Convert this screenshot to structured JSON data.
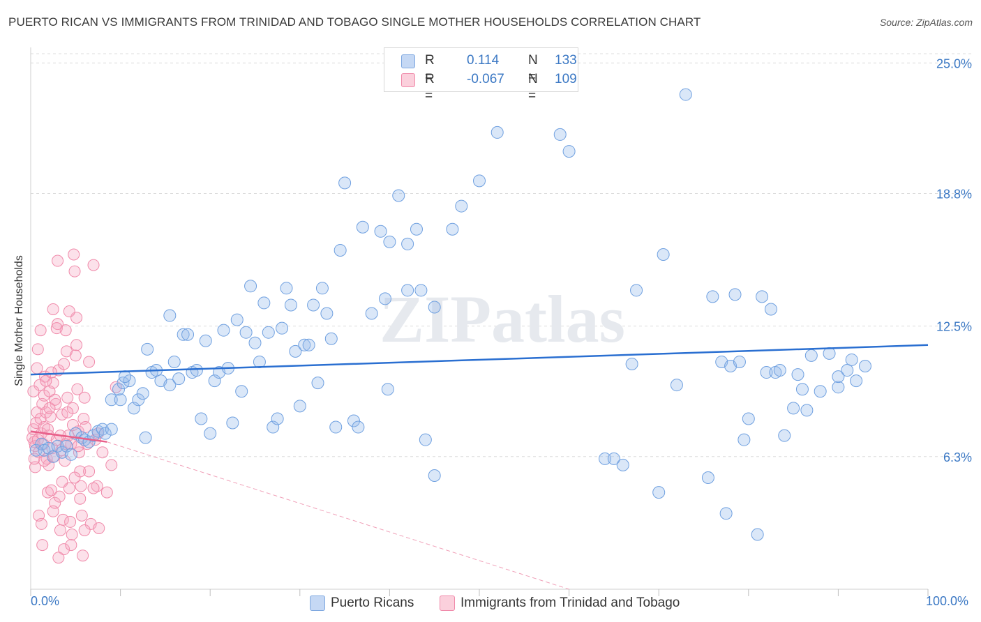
{
  "title": "PUERTO RICAN VS IMMIGRANTS FROM TRINIDAD AND TOBAGO SINGLE MOTHER HOUSEHOLDS CORRELATION CHART",
  "source": "Source: ZipAtlas.com",
  "watermark": "ZIPatlas",
  "legend": {
    "rows": [
      {
        "r_label": "R =",
        "r_value": "0.114",
        "n_label": "N =",
        "n_value": "133",
        "color": "#a9c6ee"
      },
      {
        "r_label": "R =",
        "r_value": "-0.067",
        "n_label": "N =",
        "n_value": "109",
        "color": "#f6b9cb"
      }
    ]
  },
  "bottom_legend": {
    "series1": "Puerto Ricans",
    "series2": "Immigrants from Trinidad and Tobago"
  },
  "chart_data": {
    "type": "scatter",
    "title": "PUERTO RICAN VS IMMIGRANTS FROM TRINIDAD AND TOBAGO SINGLE MOTHER HOUSEHOLDS CORRELATION CHART",
    "xlabel": "",
    "ylabel": "Single Mother Households",
    "xlim": [
      0,
      100
    ],
    "ylim": [
      0,
      26.5
    ],
    "x_tick_labels": [
      "0.0%",
      "100.0%"
    ],
    "y_ticks": [
      6.3,
      12.5,
      18.8,
      25.0
    ],
    "y_tick_labels": [
      "6.3%",
      "12.5%",
      "18.8%",
      "25.0%"
    ],
    "grid": true,
    "series": [
      {
        "name": "Puerto Ricans",
        "color": "#6fa0e0",
        "trend": {
          "x": [
            0,
            100
          ],
          "y": [
            10.2,
            11.6
          ],
          "color": "#2a6fd1"
        },
        "points": [
          [
            0.6,
            6.6
          ],
          [
            1.2,
            6.9
          ],
          [
            1.5,
            6.6
          ],
          [
            2,
            6.7
          ],
          [
            2.5,
            6.3
          ],
          [
            3,
            6.8
          ],
          [
            3.5,
            6.5
          ],
          [
            4,
            6.8
          ],
          [
            4.5,
            6.4
          ],
          [
            5,
            7.4
          ],
          [
            5.7,
            7.2
          ],
          [
            6,
            7.1
          ],
          [
            6.5,
            7
          ],
          [
            7,
            7.3
          ],
          [
            7.5,
            7.5
          ],
          [
            8,
            7.6
          ],
          [
            8.3,
            7.4
          ],
          [
            9,
            7.6
          ],
          [
            9,
            9
          ],
          [
            10,
            9
          ],
          [
            9.8,
            9.5
          ],
          [
            10.3,
            9.8
          ],
          [
            11,
            9.9
          ],
          [
            10.5,
            10.1
          ],
          [
            11.5,
            8.6
          ],
          [
            12,
            9
          ],
          [
            12.5,
            9.3
          ],
          [
            12.8,
            7.2
          ],
          [
            13,
            11.4
          ],
          [
            13.5,
            10.3
          ],
          [
            14,
            10.4
          ],
          [
            14.5,
            9.9
          ],
          [
            15.5,
            9.7
          ],
          [
            15.5,
            13
          ],
          [
            16,
            10.8
          ],
          [
            16.5,
            10
          ],
          [
            17,
            12.1
          ],
          [
            17.5,
            12.1
          ],
          [
            18,
            10.3
          ],
          [
            18.5,
            10.4
          ],
          [
            19,
            8.1
          ],
          [
            19.5,
            11.8
          ],
          [
            20,
            7.4
          ],
          [
            20.5,
            9.9
          ],
          [
            21,
            10.3
          ],
          [
            21.5,
            12.3
          ],
          [
            22,
            10.5
          ],
          [
            22.5,
            7.9
          ],
          [
            23,
            12.8
          ],
          [
            23.5,
            9.4
          ],
          [
            24,
            12.2
          ],
          [
            24.5,
            14.4
          ],
          [
            25,
            11.7
          ],
          [
            25.5,
            10.8
          ],
          [
            26,
            13.6
          ],
          [
            26.5,
            12.2
          ],
          [
            27,
            7.7
          ],
          [
            27.5,
            8.1
          ],
          [
            28,
            12.4
          ],
          [
            28.5,
            14.3
          ],
          [
            29,
            13.5
          ],
          [
            29.5,
            11.3
          ],
          [
            30,
            8.7
          ],
          [
            30.5,
            11.6
          ],
          [
            31,
            11.6
          ],
          [
            31.5,
            13.5
          ],
          [
            32,
            9.8
          ],
          [
            32.5,
            14.3
          ],
          [
            33,
            13.1
          ],
          [
            33.5,
            11.9
          ],
          [
            34,
            7.7
          ],
          [
            34.5,
            16.1
          ],
          [
            35,
            19.3
          ],
          [
            36,
            8
          ],
          [
            36.5,
            7.7
          ],
          [
            37,
            17.2
          ],
          [
            38,
            13.1
          ],
          [
            39,
            17
          ],
          [
            39.5,
            13.8
          ],
          [
            39.8,
            9.5
          ],
          [
            40,
            16.5
          ],
          [
            41,
            18.7
          ],
          [
            42,
            16.4
          ],
          [
            42,
            14.2
          ],
          [
            43,
            17.1
          ],
          [
            43.5,
            14.2
          ],
          [
            44,
            7.1
          ],
          [
            45,
            13.4
          ],
          [
            45,
            5.4
          ],
          [
            47,
            17.1
          ],
          [
            48,
            18.2
          ],
          [
            50,
            19.4
          ],
          [
            52,
            21.7
          ],
          [
            59,
            21.6
          ],
          [
            60,
            20.8
          ],
          [
            64,
            6.2
          ],
          [
            65,
            6.2
          ],
          [
            66,
            5.9
          ],
          [
            67,
            10.7
          ],
          [
            67.5,
            14.2
          ],
          [
            70,
            4.6
          ],
          [
            70.5,
            15.9
          ],
          [
            72,
            9.7
          ],
          [
            73,
            23.5
          ],
          [
            75.5,
            5.3
          ],
          [
            76,
            13.9
          ],
          [
            77,
            10.8
          ],
          [
            77.5,
            3.6
          ],
          [
            78,
            10.6
          ],
          [
            78.5,
            14
          ],
          [
            79,
            10.8
          ],
          [
            79.5,
            7.1
          ],
          [
            80,
            8.1
          ],
          [
            81,
            2.6
          ],
          [
            81.5,
            13.9
          ],
          [
            82,
            10.3
          ],
          [
            82.5,
            13.3
          ],
          [
            83,
            10.3
          ],
          [
            83.5,
            10.4
          ],
          [
            84,
            7.3
          ],
          [
            85,
            8.6
          ],
          [
            85.5,
            10.2
          ],
          [
            86,
            9.5
          ],
          [
            86.5,
            8.5
          ],
          [
            87,
            11.1
          ],
          [
            88,
            9.4
          ],
          [
            89,
            11.2
          ],
          [
            90,
            9.6
          ],
          [
            90,
            10.1
          ],
          [
            91,
            10.4
          ],
          [
            91.5,
            10.9
          ],
          [
            92,
            9.9
          ],
          [
            93,
            10.6
          ]
        ]
      },
      {
        "name": "Immigrants from Trinidad and Tobago",
        "color": "#f08aaa",
        "trend": {
          "x": [
            0,
            8.5
          ],
          "y": [
            7.5,
            7.0
          ],
          "color": "#e8608a"
        },
        "trend_extended": {
          "x": [
            8.5,
            60
          ],
          "y": [
            7.0,
            0.0
          ],
          "color": "#f0a0b8"
        },
        "points": [
          [
            0.2,
            7.2
          ],
          [
            0.3,
            7.6
          ],
          [
            0.4,
            7
          ],
          [
            0.5,
            6.8
          ],
          [
            0.6,
            7.9
          ],
          [
            0.7,
            8.4
          ],
          [
            0.8,
            7.1
          ],
          [
            0.9,
            6.5
          ],
          [
            1,
            9.7
          ],
          [
            1.1,
            8.1
          ],
          [
            1.2,
            7.4
          ],
          [
            1.3,
            8.8
          ],
          [
            1.4,
            6.9
          ],
          [
            1.5,
            9.2
          ],
          [
            1.5,
            7.7
          ],
          [
            1.6,
            10.1
          ],
          [
            1.7,
            8.4
          ],
          [
            1.8,
            6.2
          ],
          [
            1.9,
            4.6
          ],
          [
            2,
            5.9
          ],
          [
            2,
            7.3
          ],
          [
            2.1,
            9.4
          ],
          [
            2.2,
            8.2
          ],
          [
            2.3,
            4.7
          ],
          [
            2.4,
            6.7
          ],
          [
            2.5,
            13.3
          ],
          [
            2.5,
            9.8
          ],
          [
            2.6,
            6.3
          ],
          [
            2.7,
            4.1
          ],
          [
            2.8,
            8.8
          ],
          [
            2.9,
            7.1
          ],
          [
            3,
            15.6
          ],
          [
            3,
            12.6
          ],
          [
            3.1,
            10.4
          ],
          [
            3.2,
            4.4
          ],
          [
            3.3,
            2.8
          ],
          [
            3.4,
            6.6
          ],
          [
            3.5,
            8.3
          ],
          [
            3.6,
            3.3
          ],
          [
            3.7,
            1.9
          ],
          [
            3.8,
            6.1
          ],
          [
            3.9,
            12.3
          ],
          [
            4,
            11.3
          ],
          [
            4.1,
            9.1
          ],
          [
            4.2,
            7.3
          ],
          [
            4.3,
            4.8
          ],
          [
            4.4,
            3.2
          ],
          [
            4.5,
            6.9
          ],
          [
            4.6,
            2.6
          ],
          [
            4.7,
            8.6
          ],
          [
            4.8,
            15.9
          ],
          [
            4.9,
            15.1
          ],
          [
            5,
            11.1
          ],
          [
            5.1,
            12.9
          ],
          [
            5.2,
            9.5
          ],
          [
            5.3,
            7.5
          ],
          [
            5.4,
            6.5
          ],
          [
            5.5,
            5.6
          ],
          [
            5.6,
            4.9
          ],
          [
            5.7,
            3.5
          ],
          [
            5.8,
            1.6
          ],
          [
            5.9,
            8.1
          ],
          [
            6,
            9.1
          ],
          [
            6.1,
            7.7
          ],
          [
            6.3,
            6.9
          ],
          [
            6.5,
            5.6
          ],
          [
            6.7,
            3.1
          ],
          [
            7,
            15.4
          ],
          [
            7.2,
            7.1
          ],
          [
            7.4,
            4.9
          ],
          [
            7.6,
            2.9
          ],
          [
            0.3,
            9.4
          ],
          [
            0.5,
            5.8
          ],
          [
            0.7,
            10.5
          ],
          [
            0.9,
            3.5
          ],
          [
            1.1,
            12.3
          ],
          [
            1.3,
            2.1
          ],
          [
            1.5,
            6.1
          ],
          [
            1.7,
            9.9
          ],
          [
            1.9,
            7.6
          ],
          [
            2.1,
            8.6
          ],
          [
            2.3,
            10.3
          ],
          [
            2.5,
            3.7
          ],
          [
            2.7,
            9
          ],
          [
            2.9,
            12.4
          ],
          [
            3.1,
            1.5
          ],
          [
            3.3,
            7.3
          ],
          [
            3.5,
            5.1
          ],
          [
            3.7,
            10.7
          ],
          [
            3.9,
            6.9
          ],
          [
            4.1,
            8.4
          ],
          [
            4.3,
            13.2
          ],
          [
            4.5,
            2.1
          ],
          [
            4.7,
            7.8
          ],
          [
            4.9,
            5.3
          ],
          [
            5.1,
            11.6
          ],
          [
            5.3,
            6.8
          ],
          [
            5.5,
            4.3
          ],
          [
            6,
            2.8
          ],
          [
            6.5,
            10.8
          ],
          [
            7,
            4.8
          ],
          [
            7.5,
            7.4
          ],
          [
            8,
            6.5
          ],
          [
            8.5,
            4.6
          ],
          [
            9,
            5.9
          ],
          [
            9.5,
            9.6
          ],
          [
            0.4,
            6.2
          ],
          [
            0.8,
            11.4
          ],
          [
            1.2,
            3.1
          ]
        ]
      }
    ]
  }
}
